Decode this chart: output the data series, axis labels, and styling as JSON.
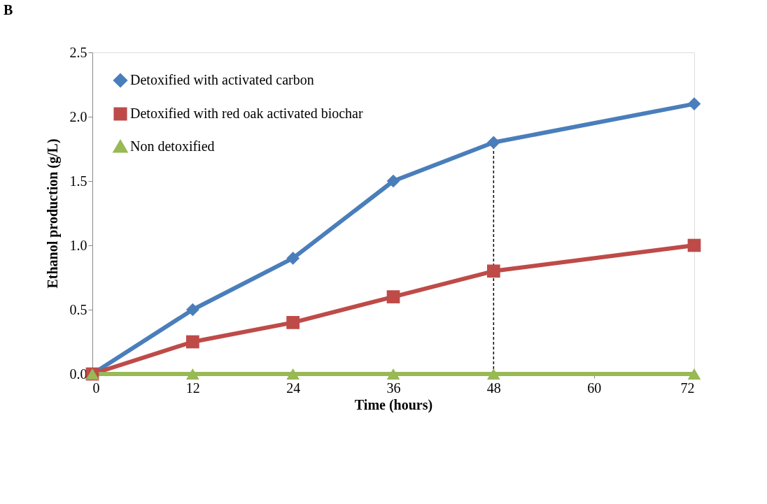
{
  "chart_data": {
    "type": "line",
    "title": "B",
    "xlabel": "Time (hours)",
    "ylabel": "Ethanol production (g/L)",
    "x": [
      0,
      12,
      24,
      36,
      48,
      72
    ],
    "series": [
      {
        "name": "Detoxified with activated carbon",
        "color": "#4a7ebb",
        "marker": "diamond",
        "values": [
          0,
          0.5,
          0.9,
          1.5,
          1.8,
          2.1
        ]
      },
      {
        "name": "Detoxified with red oak activated biochar",
        "color": "#be4b48",
        "marker": "square",
        "values": [
          0,
          0.25,
          0.4,
          0.6,
          0.8,
          1.0
        ]
      },
      {
        "name": "Non detoxified",
        "color": "#98b954",
        "marker": "triangle",
        "values": [
          0,
          0,
          0,
          0,
          0,
          0
        ]
      }
    ],
    "xlim": [
      0,
      72
    ],
    "xticks": [
      0,
      12,
      24,
      36,
      48,
      60,
      72
    ],
    "ylim": [
      0,
      2.5
    ],
    "yticks": [
      {
        "value": 0,
        "label": "0.0"
      },
      0.5,
      {
        "value": 1,
        "label": "1.0"
      },
      1.5,
      {
        "value": 2,
        "label": "2.0"
      },
      2.5
    ],
    "ref_lines": [
      {
        "axis": "x",
        "value": 48,
        "line_style": "dashed",
        "color": "#000000"
      }
    ],
    "grid": false,
    "legend": "top left",
    "line_style": "solid"
  }
}
